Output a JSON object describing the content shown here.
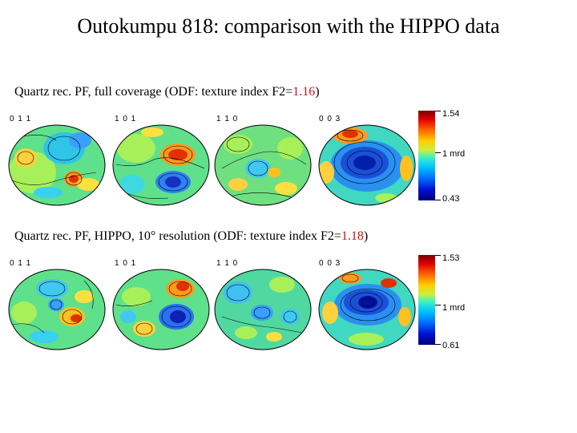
{
  "slide": {
    "title": "Outokumpu 818: comparison with the HIPPO data"
  },
  "rows": [
    {
      "caption_prefix": "Quartz rec. PF, full coverage (ODF: texture index F2=",
      "caption_value": "1.16",
      "caption_suffix": ")",
      "pole_figures": [
        "0 1 1",
        "1 0 1",
        "1 1 0",
        "0 0 3"
      ],
      "colorbar": {
        "max_label": "1.54",
        "mid_label": "1 mrd",
        "min_label": "0.43"
      }
    },
    {
      "caption_prefix": "Quartz rec. PF, HIPPO, 10° resolution (ODF: texture index F2=",
      "caption_value": "1.18",
      "caption_suffix": ")",
      "pole_figures": [
        "0 1 1",
        "1 0 1",
        "1 1 0",
        "0 0 3"
      ],
      "colorbar": {
        "max_label": "1.53",
        "mid_label": "1 mrd",
        "min_label": "0.61"
      }
    }
  ]
}
